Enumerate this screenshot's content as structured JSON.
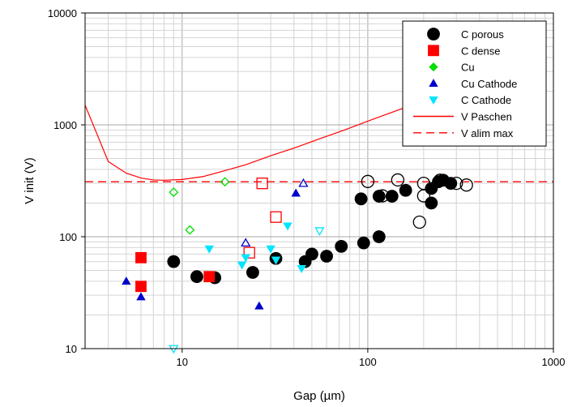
{
  "chart_data": {
    "type": "scatter",
    "xscale": "log",
    "yscale": "log",
    "xlim": [
      3,
      1000
    ],
    "ylim": [
      10,
      10000
    ],
    "xlabel": "Gap (µm)",
    "ylabel": "V init (V)",
    "x_ticks": [
      "10",
      "100",
      "1000"
    ],
    "y_ticks": [
      "10",
      "100",
      "1000",
      "10000"
    ],
    "grid": "major and minor",
    "legend_position": "top-right",
    "series": [
      {
        "name": "C porous",
        "marker": "circle",
        "color": "#000000",
        "filled": [
          [
            9,
            60
          ],
          [
            12,
            44
          ],
          [
            15,
            43
          ],
          [
            24,
            48
          ],
          [
            32,
            64
          ],
          [
            46,
            60
          ],
          [
            50,
            70
          ],
          [
            60,
            67
          ],
          [
            72,
            82
          ],
          [
            95,
            88
          ],
          [
            115,
            100
          ],
          [
            92,
            218
          ],
          [
            115,
            230
          ],
          [
            135,
            230
          ],
          [
            160,
            260
          ],
          [
            220,
            200
          ],
          [
            220,
            270
          ],
          [
            255,
            320
          ],
          [
            280,
            300
          ],
          [
            240,
            310
          ]
        ],
        "hollow": [
          [
            100,
            312
          ],
          [
            120,
            232
          ],
          [
            145,
            322
          ],
          [
            190,
            135
          ],
          [
            200,
            300
          ],
          [
            200,
            232
          ],
          [
            245,
            320
          ],
          [
            300,
            300
          ],
          [
            340,
            290
          ]
        ]
      },
      {
        "name": "C dense",
        "marker": "square",
        "color": "#ff0000",
        "filled": [
          [
            6,
            65
          ],
          [
            6,
            36
          ],
          [
            14,
            44
          ]
        ],
        "hollow": [
          [
            23,
            72
          ],
          [
            27,
            300
          ],
          [
            32,
            150
          ]
        ]
      },
      {
        "name": "Cu",
        "marker": "diamond",
        "color": "#00dd00",
        "filled": [],
        "hollow": [
          [
            9,
            250
          ],
          [
            11,
            115
          ],
          [
            17,
            310
          ]
        ]
      },
      {
        "name": "Cu  Cathode",
        "marker": "triangle-up",
        "color": "#0000cc",
        "filled": [
          [
            5,
            40
          ],
          [
            6,
            29
          ],
          [
            26,
            24
          ],
          [
            41,
            245
          ]
        ],
        "hollow": [
          [
            22,
            88
          ],
          [
            45,
            300
          ]
        ]
      },
      {
        "name": "C  Cathode",
        "marker": "triangle-down",
        "color": "#00e5ff",
        "filled": [
          [
            14,
            78
          ],
          [
            21,
            56
          ],
          [
            22,
            65
          ],
          [
            30,
            78
          ],
          [
            32,
            62
          ],
          [
            37,
            125
          ],
          [
            44,
            52
          ]
        ],
        "hollow": [
          [
            9,
            10
          ],
          [
            55,
            113
          ]
        ]
      },
      {
        "name": "V Paschen",
        "marker": "line",
        "color": "#ff0000",
        "points": [
          [
            3,
            1500
          ],
          [
            4,
            470
          ],
          [
            5,
            370
          ],
          [
            6,
            335
          ],
          [
            7,
            322
          ],
          [
            8,
            320
          ],
          [
            10,
            325
          ],
          [
            13,
            345
          ],
          [
            17,
            390
          ],
          [
            22,
            440
          ],
          [
            30,
            530
          ],
          [
            40,
            620
          ],
          [
            55,
            750
          ],
          [
            75,
            900
          ],
          [
            100,
            1080
          ],
          [
            150,
            1380
          ],
          [
            200,
            1620
          ],
          [
            250,
            1850
          ]
        ]
      },
      {
        "name": "V alim max",
        "marker": "dashed-line",
        "color": "#ff0000",
        "value": 310
      }
    ]
  }
}
